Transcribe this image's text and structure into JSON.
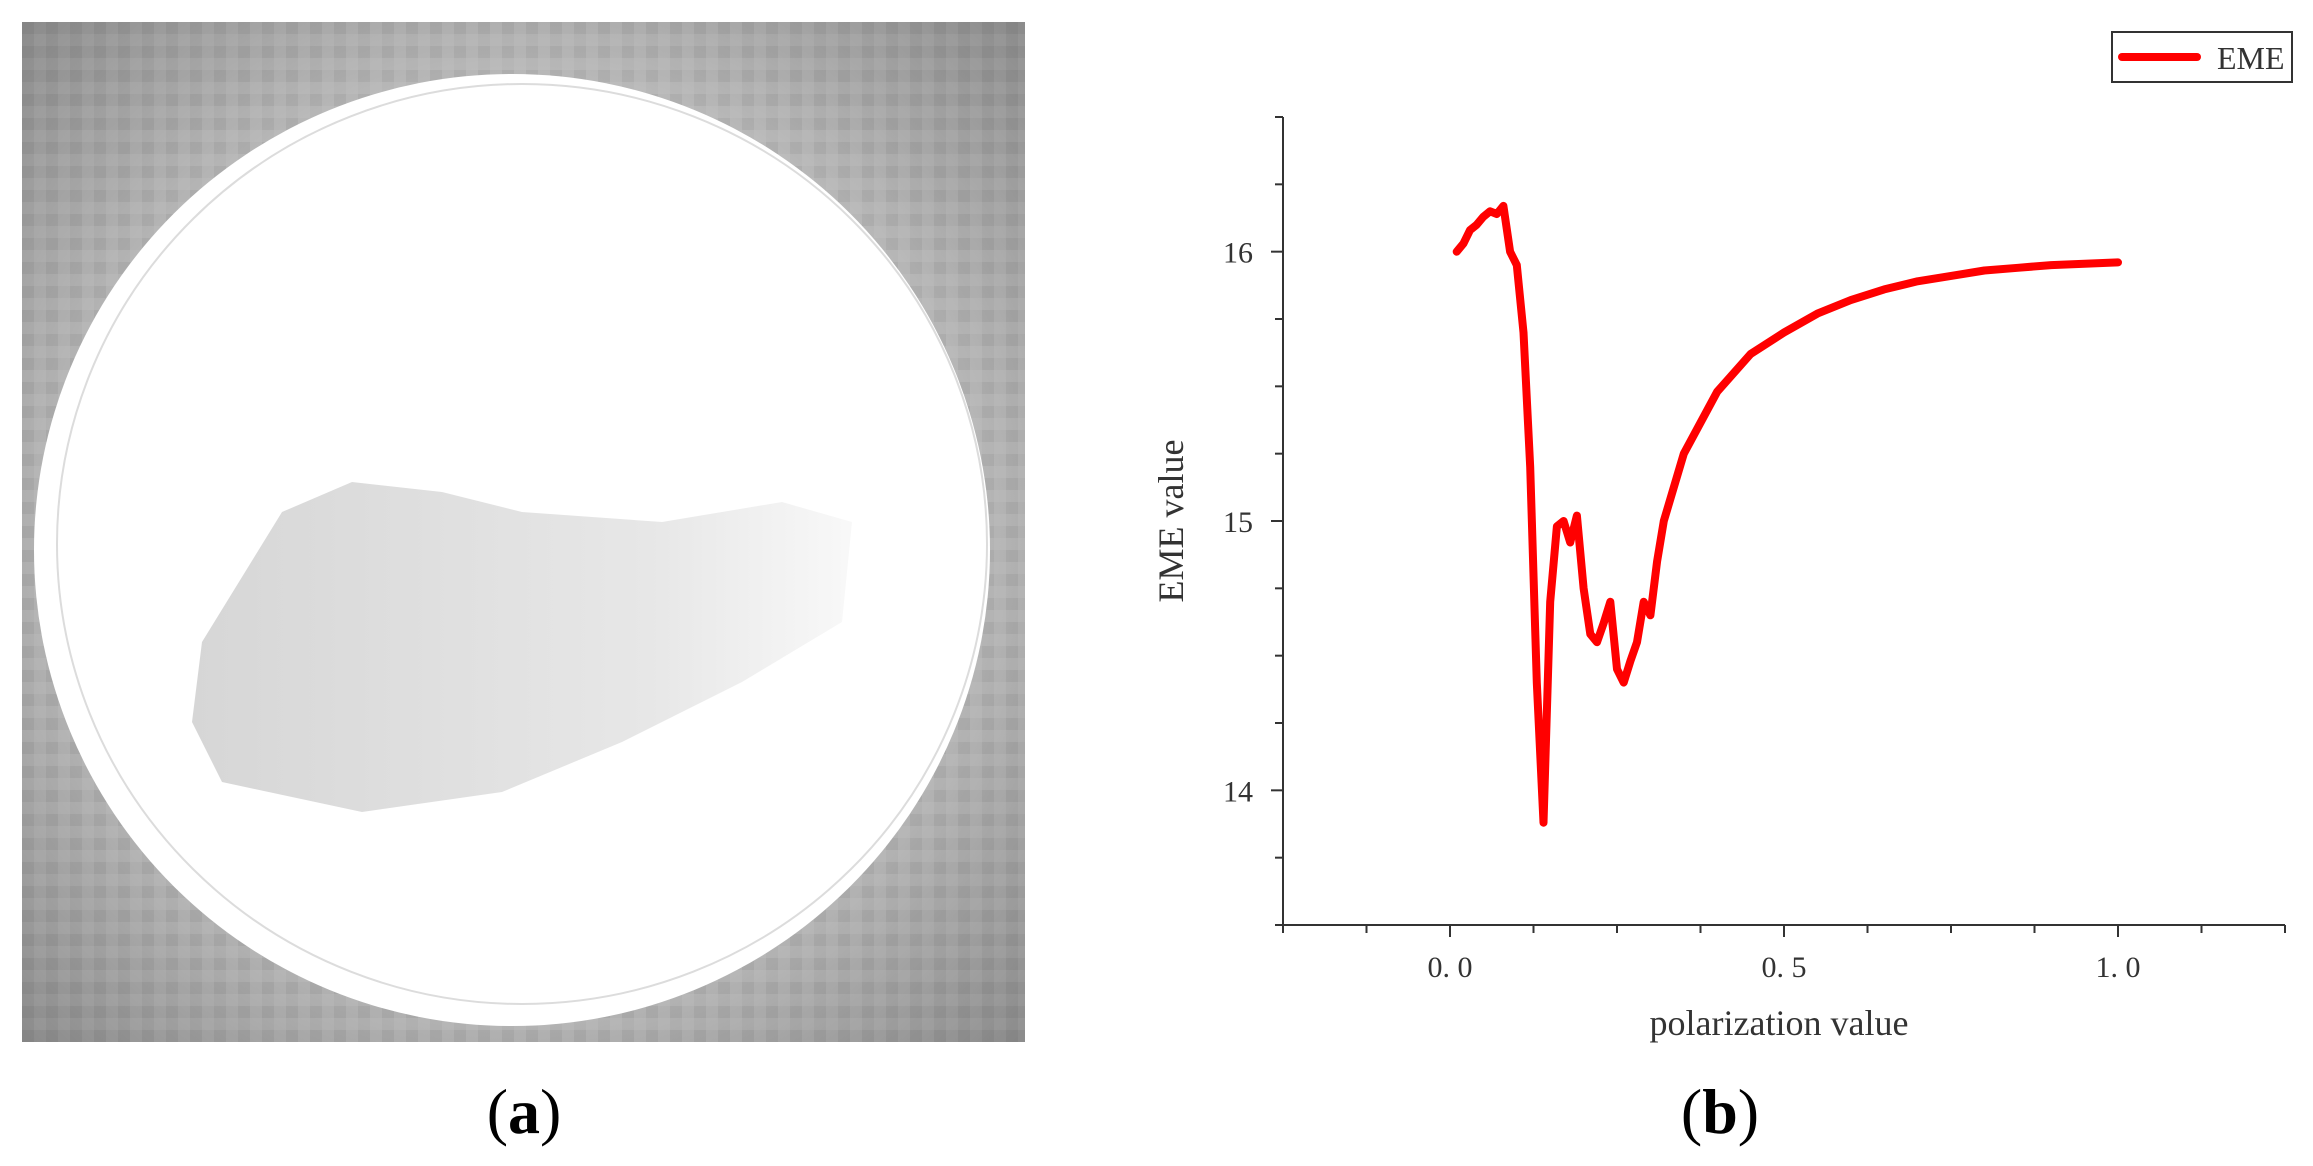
{
  "panel_a": {
    "caption_open": "(",
    "caption_letter": "a",
    "caption_close": ")",
    "description_colors": {
      "background": "#9a9a9a",
      "dish": "#ffffff",
      "sample": "#dcdcdc"
    }
  },
  "panel_b": {
    "caption_open": "(",
    "caption_letter": "b",
    "caption_close": ")"
  },
  "chart_data": {
    "type": "line",
    "title": "",
    "xlabel": "polarization value",
    "ylabel": "EME value",
    "xlim": [
      -0.25,
      1.25
    ],
    "ylim": [
      13.5,
      16.5
    ],
    "xticks": [
      0.0,
      0.5,
      1.0
    ],
    "xtick_labels": [
      "0. 0",
      "0. 5",
      "1. 0"
    ],
    "yticks": [
      14,
      15,
      16
    ],
    "ytick_labels": [
      "14",
      "15",
      "16"
    ],
    "grid": false,
    "legend": "top-right",
    "series": [
      {
        "name": "EME",
        "color": "#ff0000",
        "x": [
          0.01,
          0.02,
          0.03,
          0.04,
          0.05,
          0.06,
          0.07,
          0.08,
          0.09,
          0.1,
          0.11,
          0.12,
          0.13,
          0.14,
          0.15,
          0.16,
          0.17,
          0.18,
          0.19,
          0.2,
          0.21,
          0.22,
          0.23,
          0.24,
          0.25,
          0.26,
          0.27,
          0.28,
          0.29,
          0.3,
          0.31,
          0.32,
          0.35,
          0.4,
          0.45,
          0.5,
          0.55,
          0.6,
          0.65,
          0.7,
          0.75,
          0.8,
          0.85,
          0.9,
          0.95,
          1.0
        ],
        "y": [
          16.0,
          16.03,
          16.08,
          16.1,
          16.13,
          16.15,
          16.14,
          16.17,
          16.0,
          15.95,
          15.7,
          15.2,
          14.4,
          13.88,
          14.7,
          14.98,
          15.0,
          14.92,
          15.02,
          14.75,
          14.58,
          14.55,
          14.62,
          14.7,
          14.45,
          14.4,
          14.48,
          14.55,
          14.7,
          14.65,
          14.85,
          15.0,
          15.25,
          15.48,
          15.62,
          15.7,
          15.77,
          15.82,
          15.86,
          15.89,
          15.91,
          15.93,
          15.94,
          15.95,
          15.955,
          15.96
        ]
      }
    ]
  }
}
